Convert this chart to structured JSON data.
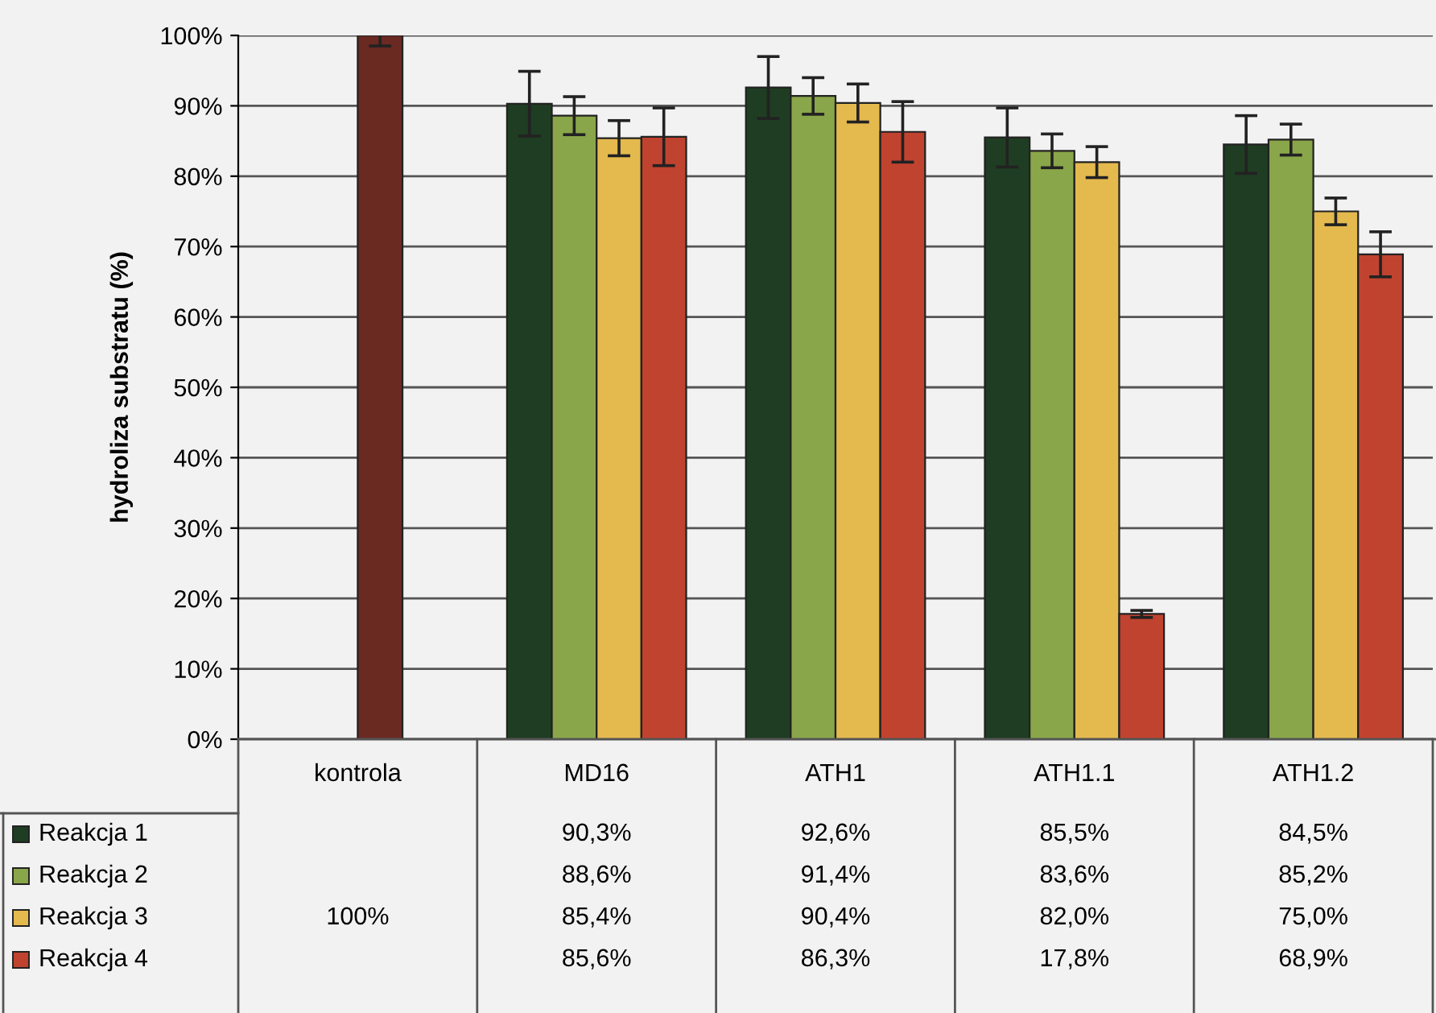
{
  "chart_data": {
    "type": "bar",
    "ylabel": "hydroliza substratu (%)",
    "categories": [
      "kontrola",
      "MD16",
      "ATH1",
      "ATH1.1",
      "ATH1.2"
    ],
    "ylim": [
      0,
      100
    ],
    "yticks": [
      {
        "value": 0,
        "label": "0%"
      },
      {
        "value": 10,
        "label": "10%"
      },
      {
        "value": 20,
        "label": "20%"
      },
      {
        "value": 30,
        "label": "30%"
      },
      {
        "value": 40,
        "label": "40%"
      },
      {
        "value": 50,
        "label": "50%"
      },
      {
        "value": 60,
        "label": "60%"
      },
      {
        "value": 70,
        "label": "70%"
      },
      {
        "value": 80,
        "label": "80%"
      },
      {
        "value": 90,
        "label": "90%"
      },
      {
        "value": 100,
        "label": "100%"
      }
    ],
    "grid": "y",
    "legend": "bottom",
    "series": [
      {
        "name": "Reakcja 1",
        "color": "#1f3d22",
        "values": [
          null,
          90.3,
          92.6,
          85.5,
          84.5
        ],
        "errors": [
          null,
          4.6,
          4.4,
          4.2,
          4.1
        ],
        "value_labels": [
          null,
          "90,3%",
          "92,6%",
          "85,5%",
          "84,5%"
        ]
      },
      {
        "name": "Reakcja 2",
        "color": "#8aa64a",
        "values": [
          null,
          88.6,
          91.4,
          83.6,
          85.2
        ],
        "errors": [
          null,
          2.7,
          2.6,
          2.4,
          2.2
        ],
        "value_labels": [
          null,
          "88,6%",
          "91,4%",
          "83,6%",
          "85,2%"
        ]
      },
      {
        "name": "Reakcja 3",
        "color": "#e4b94e",
        "colors": [
          "#6a2a22",
          "#e4b94e",
          "#e4b94e",
          "#e4b94e",
          "#e4b94e"
        ],
        "values": [
          100,
          85.4,
          90.4,
          82.0,
          75.0
        ],
        "errors": [
          1.5,
          2.5,
          2.7,
          2.2,
          1.9
        ],
        "value_labels": [
          "100%",
          "85,4%",
          "90,4%",
          "82,0%",
          "75,0%"
        ]
      },
      {
        "name": "Reakcja 4",
        "color": "#c0432f",
        "values": [
          null,
          85.6,
          86.3,
          17.8,
          68.9
        ],
        "errors": [
          null,
          4.1,
          4.3,
          0.5,
          3.2
        ],
        "value_labels": [
          null,
          "85,6%",
          "86,3%",
          "17,8%",
          "68,9%"
        ]
      }
    ]
  }
}
